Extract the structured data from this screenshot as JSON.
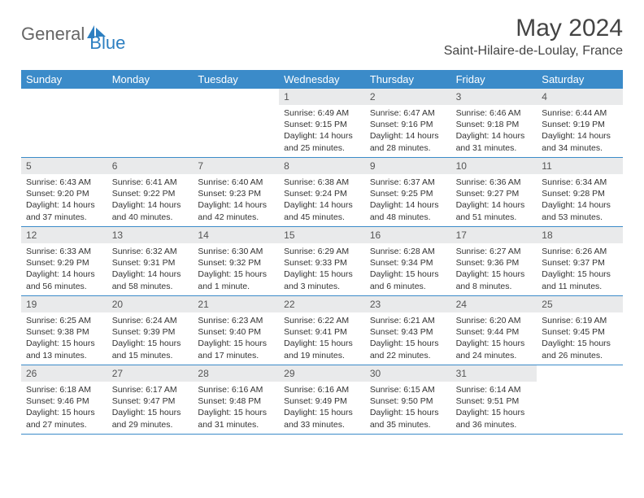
{
  "logo": {
    "part1": "General",
    "part2": "Blue"
  },
  "header": {
    "month_title": "May 2024",
    "location": "Saint-Hilaire-de-Loulay, France"
  },
  "colors": {
    "header_bg": "#3b8bc9",
    "daynum_bg": "#e9eaeb",
    "text": "#333333",
    "title": "#444444"
  },
  "days_of_week": [
    "Sunday",
    "Monday",
    "Tuesday",
    "Wednesday",
    "Thursday",
    "Friday",
    "Saturday"
  ],
  "weeks": [
    [
      {
        "n": "",
        "sunrise": "",
        "sunset": "",
        "daylight": ""
      },
      {
        "n": "",
        "sunrise": "",
        "sunset": "",
        "daylight": ""
      },
      {
        "n": "",
        "sunrise": "",
        "sunset": "",
        "daylight": ""
      },
      {
        "n": "1",
        "sunrise": "Sunrise: 6:49 AM",
        "sunset": "Sunset: 9:15 PM",
        "daylight": "Daylight: 14 hours and 25 minutes."
      },
      {
        "n": "2",
        "sunrise": "Sunrise: 6:47 AM",
        "sunset": "Sunset: 9:16 PM",
        "daylight": "Daylight: 14 hours and 28 minutes."
      },
      {
        "n": "3",
        "sunrise": "Sunrise: 6:46 AM",
        "sunset": "Sunset: 9:18 PM",
        "daylight": "Daylight: 14 hours and 31 minutes."
      },
      {
        "n": "4",
        "sunrise": "Sunrise: 6:44 AM",
        "sunset": "Sunset: 9:19 PM",
        "daylight": "Daylight: 14 hours and 34 minutes."
      }
    ],
    [
      {
        "n": "5",
        "sunrise": "Sunrise: 6:43 AM",
        "sunset": "Sunset: 9:20 PM",
        "daylight": "Daylight: 14 hours and 37 minutes."
      },
      {
        "n": "6",
        "sunrise": "Sunrise: 6:41 AM",
        "sunset": "Sunset: 9:22 PM",
        "daylight": "Daylight: 14 hours and 40 minutes."
      },
      {
        "n": "7",
        "sunrise": "Sunrise: 6:40 AM",
        "sunset": "Sunset: 9:23 PM",
        "daylight": "Daylight: 14 hours and 42 minutes."
      },
      {
        "n": "8",
        "sunrise": "Sunrise: 6:38 AM",
        "sunset": "Sunset: 9:24 PM",
        "daylight": "Daylight: 14 hours and 45 minutes."
      },
      {
        "n": "9",
        "sunrise": "Sunrise: 6:37 AM",
        "sunset": "Sunset: 9:25 PM",
        "daylight": "Daylight: 14 hours and 48 minutes."
      },
      {
        "n": "10",
        "sunrise": "Sunrise: 6:36 AM",
        "sunset": "Sunset: 9:27 PM",
        "daylight": "Daylight: 14 hours and 51 minutes."
      },
      {
        "n": "11",
        "sunrise": "Sunrise: 6:34 AM",
        "sunset": "Sunset: 9:28 PM",
        "daylight": "Daylight: 14 hours and 53 minutes."
      }
    ],
    [
      {
        "n": "12",
        "sunrise": "Sunrise: 6:33 AM",
        "sunset": "Sunset: 9:29 PM",
        "daylight": "Daylight: 14 hours and 56 minutes."
      },
      {
        "n": "13",
        "sunrise": "Sunrise: 6:32 AM",
        "sunset": "Sunset: 9:31 PM",
        "daylight": "Daylight: 14 hours and 58 minutes."
      },
      {
        "n": "14",
        "sunrise": "Sunrise: 6:30 AM",
        "sunset": "Sunset: 9:32 PM",
        "daylight": "Daylight: 15 hours and 1 minute."
      },
      {
        "n": "15",
        "sunrise": "Sunrise: 6:29 AM",
        "sunset": "Sunset: 9:33 PM",
        "daylight": "Daylight: 15 hours and 3 minutes."
      },
      {
        "n": "16",
        "sunrise": "Sunrise: 6:28 AM",
        "sunset": "Sunset: 9:34 PM",
        "daylight": "Daylight: 15 hours and 6 minutes."
      },
      {
        "n": "17",
        "sunrise": "Sunrise: 6:27 AM",
        "sunset": "Sunset: 9:36 PM",
        "daylight": "Daylight: 15 hours and 8 minutes."
      },
      {
        "n": "18",
        "sunrise": "Sunrise: 6:26 AM",
        "sunset": "Sunset: 9:37 PM",
        "daylight": "Daylight: 15 hours and 11 minutes."
      }
    ],
    [
      {
        "n": "19",
        "sunrise": "Sunrise: 6:25 AM",
        "sunset": "Sunset: 9:38 PM",
        "daylight": "Daylight: 15 hours and 13 minutes."
      },
      {
        "n": "20",
        "sunrise": "Sunrise: 6:24 AM",
        "sunset": "Sunset: 9:39 PM",
        "daylight": "Daylight: 15 hours and 15 minutes."
      },
      {
        "n": "21",
        "sunrise": "Sunrise: 6:23 AM",
        "sunset": "Sunset: 9:40 PM",
        "daylight": "Daylight: 15 hours and 17 minutes."
      },
      {
        "n": "22",
        "sunrise": "Sunrise: 6:22 AM",
        "sunset": "Sunset: 9:41 PM",
        "daylight": "Daylight: 15 hours and 19 minutes."
      },
      {
        "n": "23",
        "sunrise": "Sunrise: 6:21 AM",
        "sunset": "Sunset: 9:43 PM",
        "daylight": "Daylight: 15 hours and 22 minutes."
      },
      {
        "n": "24",
        "sunrise": "Sunrise: 6:20 AM",
        "sunset": "Sunset: 9:44 PM",
        "daylight": "Daylight: 15 hours and 24 minutes."
      },
      {
        "n": "25",
        "sunrise": "Sunrise: 6:19 AM",
        "sunset": "Sunset: 9:45 PM",
        "daylight": "Daylight: 15 hours and 26 minutes."
      }
    ],
    [
      {
        "n": "26",
        "sunrise": "Sunrise: 6:18 AM",
        "sunset": "Sunset: 9:46 PM",
        "daylight": "Daylight: 15 hours and 27 minutes."
      },
      {
        "n": "27",
        "sunrise": "Sunrise: 6:17 AM",
        "sunset": "Sunset: 9:47 PM",
        "daylight": "Daylight: 15 hours and 29 minutes."
      },
      {
        "n": "28",
        "sunrise": "Sunrise: 6:16 AM",
        "sunset": "Sunset: 9:48 PM",
        "daylight": "Daylight: 15 hours and 31 minutes."
      },
      {
        "n": "29",
        "sunrise": "Sunrise: 6:16 AM",
        "sunset": "Sunset: 9:49 PM",
        "daylight": "Daylight: 15 hours and 33 minutes."
      },
      {
        "n": "30",
        "sunrise": "Sunrise: 6:15 AM",
        "sunset": "Sunset: 9:50 PM",
        "daylight": "Daylight: 15 hours and 35 minutes."
      },
      {
        "n": "31",
        "sunrise": "Sunrise: 6:14 AM",
        "sunset": "Sunset: 9:51 PM",
        "daylight": "Daylight: 15 hours and 36 minutes."
      },
      {
        "n": "",
        "sunrise": "",
        "sunset": "",
        "daylight": ""
      }
    ]
  ]
}
